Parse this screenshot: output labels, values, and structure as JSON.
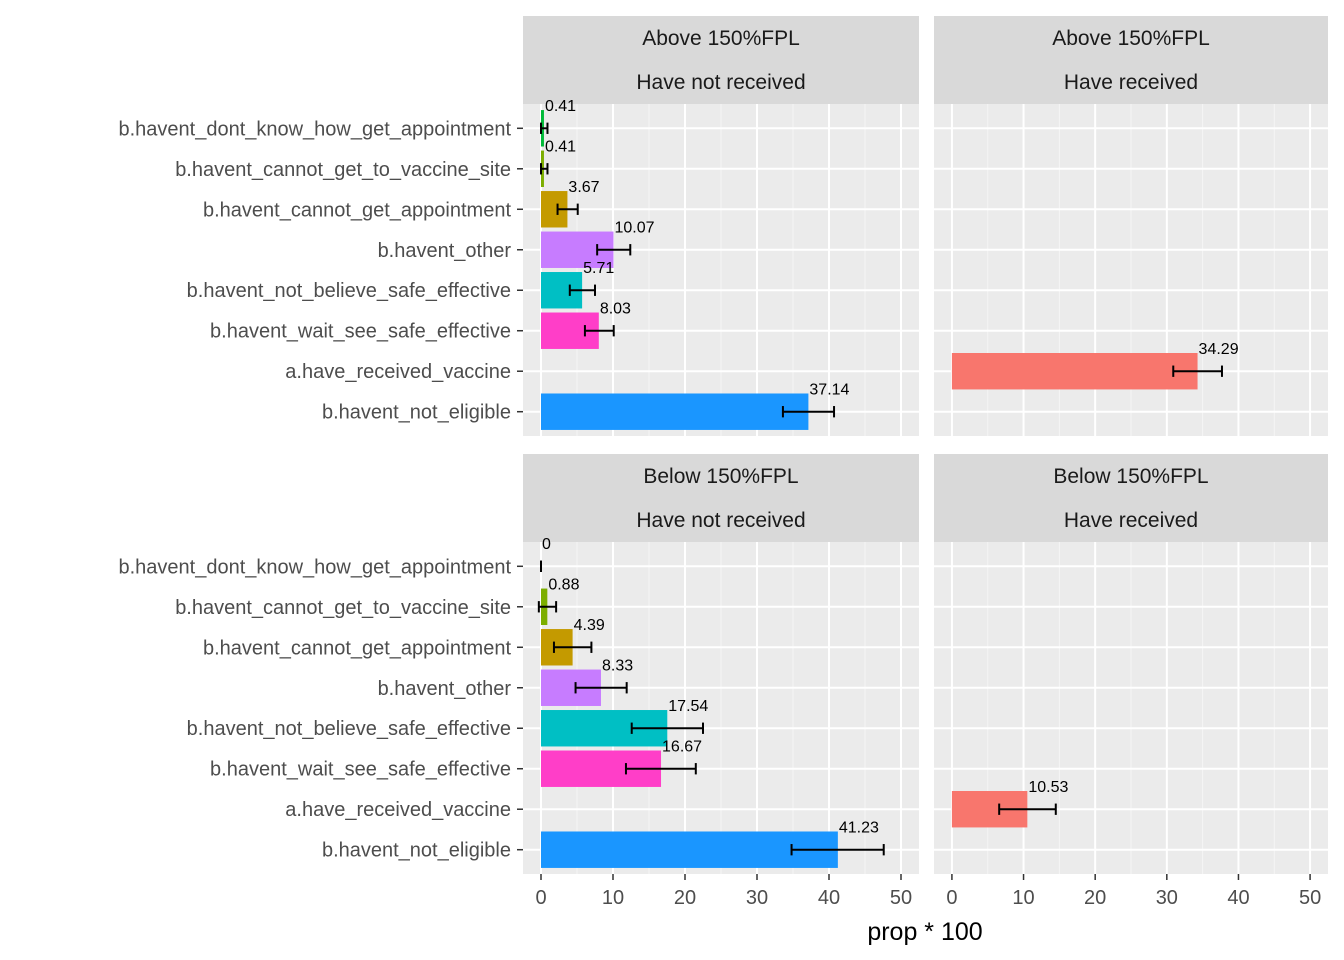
{
  "chart_data": {
    "type": "bar",
    "orientation": "horizontal",
    "xlabel": "prop * 100",
    "ylabel": "",
    "xlim": [
      0,
      50
    ],
    "x_ticks": [
      0,
      10,
      20,
      30,
      40,
      50
    ],
    "grid": true,
    "categories": [
      "b.havent_dont_know_how_get_appointment",
      "b.havent_cannot_get_to_vaccine_site",
      "b.havent_cannot_get_appointment",
      "b.havent_other",
      "b.havent_not_believe_safe_effective",
      "b.havent_wait_see_safe_effective",
      "a.have_received_vaccine",
      "b.havent_not_eligible"
    ],
    "category_colors": {
      "b.havent_dont_know_how_get_appointment": "#00BA38",
      "b.havent_cannot_get_to_vaccine_site": "#7CAE00",
      "b.havent_cannot_get_appointment": "#C49A00",
      "b.havent_other": "#C77CFF",
      "b.havent_not_believe_safe_effective": "#00BFC4",
      "b.havent_wait_see_safe_effective": "#FF3EC8",
      "a.have_received_vaccine": "#F8766D",
      "b.havent_not_eligible": "#1A96FF"
    },
    "facet_rows": [
      "Above 150%FPL",
      "Below 150%FPL"
    ],
    "facet_cols": [
      "Have not received",
      "Have received"
    ],
    "panels": [
      {
        "row": "Above 150%FPL",
        "col": "Have not received",
        "bars": [
          {
            "category": "b.havent_dont_know_how_get_appointment",
            "value": 0.41,
            "label": "0.41",
            "err_low": 0.0,
            "err_high": 0.9
          },
          {
            "category": "b.havent_cannot_get_to_vaccine_site",
            "value": 0.41,
            "label": "0.41",
            "err_low": 0.0,
            "err_high": 0.9
          },
          {
            "category": "b.havent_cannot_get_appointment",
            "value": 3.67,
            "label": "3.67",
            "err_low": 2.3,
            "err_high": 5.1
          },
          {
            "category": "b.havent_other",
            "value": 10.07,
            "label": "10.07",
            "err_low": 7.8,
            "err_high": 12.4
          },
          {
            "category": "b.havent_not_believe_safe_effective",
            "value": 5.71,
            "label": "5.71",
            "err_low": 4.0,
            "err_high": 7.5
          },
          {
            "category": "b.havent_wait_see_safe_effective",
            "value": 8.03,
            "label": "8.03",
            "err_low": 6.1,
            "err_high": 10.1
          },
          {
            "category": "b.havent_not_eligible",
            "value": 37.14,
            "label": "37.14",
            "err_low": 33.6,
            "err_high": 40.7
          }
        ]
      },
      {
        "row": "Above 150%FPL",
        "col": "Have received",
        "bars": [
          {
            "category": "a.have_received_vaccine",
            "value": 34.29,
            "label": "34.29",
            "err_low": 30.9,
            "err_high": 37.7
          }
        ]
      },
      {
        "row": "Below 150%FPL",
        "col": "Have not received",
        "bars": [
          {
            "category": "b.havent_dont_know_how_get_appointment",
            "value": 0,
            "label": "0",
            "err_low": 0,
            "err_high": 0
          },
          {
            "category": "b.havent_cannot_get_to_vaccine_site",
            "value": 0.88,
            "label": "0.88",
            "err_low": -0.3,
            "err_high": 2.1
          },
          {
            "category": "b.havent_cannot_get_appointment",
            "value": 4.39,
            "label": "4.39",
            "err_low": 1.8,
            "err_high": 7.0
          },
          {
            "category": "b.havent_other",
            "value": 8.33,
            "label": "8.33",
            "err_low": 4.8,
            "err_high": 11.9
          },
          {
            "category": "b.havent_not_believe_safe_effective",
            "value": 17.54,
            "label": "17.54",
            "err_low": 12.6,
            "err_high": 22.5
          },
          {
            "category": "b.havent_wait_see_safe_effective",
            "value": 16.67,
            "label": "16.67",
            "err_low": 11.8,
            "err_high": 21.5
          },
          {
            "category": "b.havent_not_eligible",
            "value": 41.23,
            "label": "41.23",
            "err_low": 34.8,
            "err_high": 47.6
          }
        ]
      },
      {
        "row": "Below 150%FPL",
        "col": "Have received",
        "bars": [
          {
            "category": "a.have_received_vaccine",
            "value": 10.53,
            "label": "10.53",
            "err_low": 6.6,
            "err_high": 14.5
          }
        ]
      }
    ]
  }
}
